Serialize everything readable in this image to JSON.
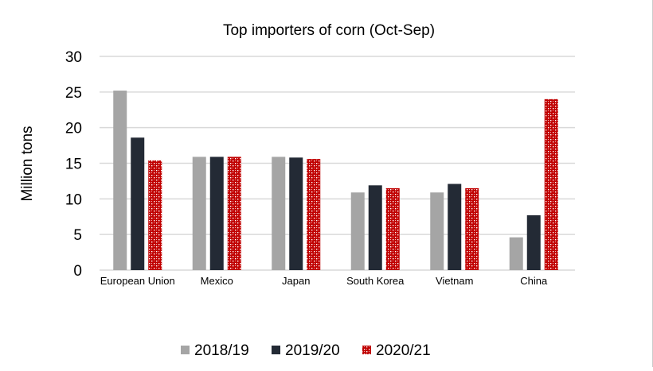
{
  "chart_data": {
    "type": "bar",
    "title": "Top importers of corn (Oct-Sep)",
    "xlabel": "",
    "ylabel": "Million tons",
    "ylim": [
      0,
      30
    ],
    "yticks": [
      0,
      5,
      10,
      15,
      20,
      25,
      30
    ],
    "grid": true,
    "legend_position": "bottom",
    "categories": [
      "European Union",
      "Mexico",
      "Japan",
      "South Korea",
      "Vietnam",
      "China"
    ],
    "series": [
      {
        "name": "2018/19",
        "color": "#a5a5a5",
        "values": [
          25.2,
          15.9,
          15.9,
          10.9,
          10.9,
          4.6
        ]
      },
      {
        "name": "2019/20",
        "color": "#232a35",
        "values": [
          18.6,
          15.9,
          15.8,
          11.9,
          12.1,
          7.7
        ]
      },
      {
        "name": "2020/21",
        "color": "#c00000",
        "pattern": "dotted-cross",
        "values": [
          15.4,
          15.9,
          15.6,
          11.5,
          11.5,
          24.0
        ]
      }
    ]
  }
}
